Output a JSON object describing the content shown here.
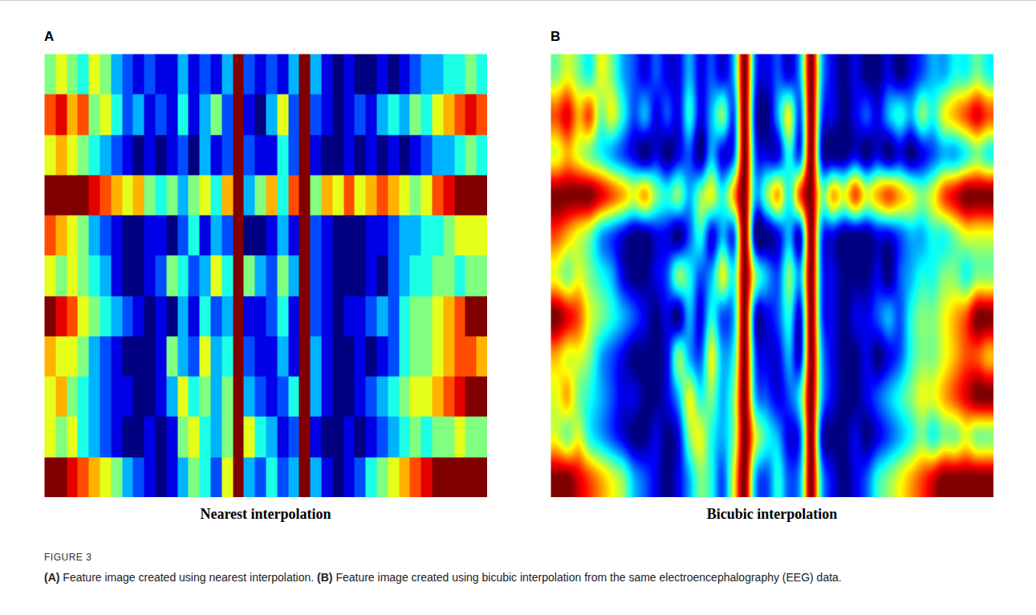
{
  "chart_data": [
    {
      "type": "heatmap",
      "panel": "A",
      "title": "Nearest interpolation",
      "tick_labels": false,
      "zlim": [
        0,
        1
      ],
      "cells": [
        [
          0.5,
          0.6,
          0.5,
          0.4,
          0.6,
          0.5,
          0.3,
          0.2,
          0.1,
          0.2,
          0.1,
          0.1,
          0.3,
          0.1,
          0.2,
          0.1,
          0.3,
          1.0,
          0.2,
          0.1,
          0.2,
          0.1,
          0.3,
          1.0,
          0.3,
          0.1,
          0.0,
          0.1,
          0.0,
          0.0,
          0.1,
          0.0,
          0.1,
          0.2,
          0.3,
          0.3,
          0.4,
          0.4,
          0.5,
          0.4
        ],
        [
          0.8,
          0.9,
          0.7,
          0.8,
          0.5,
          0.6,
          0.4,
          0.2,
          0.3,
          0.1,
          0.2,
          0.1,
          0.4,
          0.1,
          0.3,
          0.5,
          0.2,
          1.0,
          0.1,
          0.0,
          0.3,
          0.6,
          0.2,
          1.0,
          0.2,
          0.1,
          0.0,
          0.1,
          0.2,
          0.1,
          0.3,
          0.4,
          0.3,
          0.5,
          0.4,
          0.6,
          0.7,
          0.8,
          0.9,
          0.8
        ],
        [
          0.6,
          0.7,
          0.6,
          0.5,
          0.4,
          0.3,
          0.2,
          0.1,
          0.0,
          0.1,
          0.0,
          0.1,
          0.2,
          0.0,
          0.3,
          0.1,
          0.2,
          1.0,
          0.2,
          0.1,
          0.1,
          0.4,
          0.2,
          1.0,
          0.1,
          0.0,
          0.0,
          0.1,
          0.0,
          0.1,
          0.0,
          0.1,
          0.0,
          0.1,
          0.2,
          0.3,
          0.3,
          0.4,
          0.5,
          0.4
        ],
        [
          1.0,
          1.0,
          1.0,
          1.0,
          0.9,
          0.8,
          0.7,
          0.6,
          0.7,
          0.5,
          0.4,
          0.5,
          0.3,
          0.5,
          0.6,
          0.4,
          0.7,
          1.0,
          0.3,
          0.5,
          0.7,
          0.4,
          0.8,
          1.0,
          0.5,
          0.7,
          0.6,
          0.8,
          0.6,
          0.7,
          0.8,
          0.7,
          0.6,
          0.5,
          0.6,
          0.8,
          0.9,
          1.0,
          1.0,
          1.0
        ],
        [
          0.8,
          0.7,
          0.6,
          0.5,
          0.3,
          0.2,
          0.1,
          0.0,
          0.0,
          0.1,
          0.1,
          0.0,
          0.2,
          0.4,
          0.1,
          0.3,
          0.2,
          1.0,
          0.0,
          0.0,
          0.1,
          0.3,
          0.1,
          1.0,
          0.2,
          0.1,
          0.0,
          0.0,
          0.0,
          0.1,
          0.1,
          0.2,
          0.3,
          0.3,
          0.4,
          0.4,
          0.5,
          0.6,
          0.6,
          0.6
        ],
        [
          0.6,
          0.5,
          0.6,
          0.5,
          0.4,
          0.3,
          0.1,
          0.0,
          0.0,
          0.1,
          0.2,
          0.5,
          0.4,
          0.2,
          0.3,
          0.6,
          0.4,
          1.0,
          0.5,
          0.3,
          0.2,
          0.5,
          0.3,
          1.0,
          0.2,
          0.1,
          0.0,
          0.0,
          0.0,
          0.1,
          0.0,
          0.2,
          0.3,
          0.4,
          0.4,
          0.5,
          0.5,
          0.4,
          0.5,
          0.5
        ],
        [
          1.0,
          0.9,
          0.8,
          0.6,
          0.5,
          0.4,
          0.3,
          0.2,
          0.1,
          0.0,
          0.1,
          0.0,
          0.3,
          0.1,
          0.4,
          0.2,
          0.3,
          1.0,
          0.1,
          0.1,
          0.2,
          0.4,
          0.1,
          1.0,
          0.2,
          0.1,
          0.0,
          0.1,
          0.1,
          0.2,
          0.3,
          0.2,
          0.4,
          0.5,
          0.5,
          0.6,
          0.7,
          0.8,
          1.0,
          1.0
        ],
        [
          0.7,
          0.6,
          0.6,
          0.5,
          0.3,
          0.2,
          0.1,
          0.0,
          0.0,
          0.0,
          0.1,
          0.5,
          0.3,
          0.2,
          0.6,
          0.3,
          0.4,
          1.0,
          0.2,
          0.1,
          0.1,
          0.3,
          0.1,
          1.0,
          0.3,
          0.1,
          0.0,
          0.0,
          0.1,
          0.0,
          0.1,
          0.2,
          0.4,
          0.5,
          0.5,
          0.6,
          0.7,
          0.8,
          0.8,
          0.7
        ],
        [
          0.6,
          0.7,
          0.5,
          0.4,
          0.3,
          0.2,
          0.1,
          0.1,
          0.0,
          0.0,
          0.1,
          0.3,
          0.6,
          0.4,
          0.5,
          0.3,
          0.5,
          1.0,
          0.3,
          0.2,
          0.1,
          0.2,
          0.4,
          1.0,
          0.3,
          0.1,
          0.0,
          0.0,
          0.1,
          0.2,
          0.3,
          0.4,
          0.5,
          0.6,
          0.6,
          0.7,
          0.8,
          0.9,
          1.0,
          1.0
        ],
        [
          0.6,
          0.5,
          0.6,
          0.4,
          0.3,
          0.2,
          0.1,
          0.0,
          0.0,
          0.1,
          0.0,
          0.1,
          0.5,
          0.6,
          0.4,
          0.3,
          0.5,
          1.0,
          0.6,
          0.4,
          0.3,
          0.1,
          0.2,
          1.0,
          0.1,
          0.0,
          0.0,
          0.1,
          0.0,
          0.1,
          0.2,
          0.3,
          0.4,
          0.5,
          0.4,
          0.5,
          0.5,
          0.6,
          0.5,
          0.5
        ],
        [
          1.0,
          1.0,
          0.9,
          0.8,
          0.7,
          0.6,
          0.5,
          0.3,
          0.2,
          0.1,
          0.0,
          0.1,
          0.3,
          0.5,
          0.4,
          0.2,
          0.6,
          1.0,
          0.3,
          0.2,
          0.4,
          0.2,
          0.3,
          1.0,
          0.3,
          0.1,
          0.0,
          0.1,
          0.2,
          0.4,
          0.5,
          0.6,
          0.7,
          0.8,
          0.9,
          1.0,
          1.0,
          1.0,
          1.0,
          1.0
        ]
      ]
    },
    {
      "type": "heatmap",
      "panel": "B",
      "title": "Bicubic interpolation",
      "tick_labels": false,
      "zlim": [
        0,
        1
      ],
      "cells": [
        [
          0.5,
          0.6,
          0.5,
          0.4,
          0.6,
          0.5,
          0.3,
          0.2,
          0.1,
          0.2,
          0.1,
          0.1,
          0.3,
          0.1,
          0.2,
          0.1,
          0.3,
          1.0,
          0.2,
          0.1,
          0.2,
          0.1,
          0.3,
          1.0,
          0.3,
          0.1,
          0.0,
          0.1,
          0.0,
          0.0,
          0.1,
          0.0,
          0.1,
          0.2,
          0.3,
          0.3,
          0.4,
          0.4,
          0.5,
          0.4
        ],
        [
          0.8,
          0.9,
          0.7,
          0.8,
          0.5,
          0.6,
          0.4,
          0.2,
          0.3,
          0.1,
          0.2,
          0.1,
          0.4,
          0.1,
          0.3,
          0.5,
          0.2,
          1.0,
          0.1,
          0.0,
          0.3,
          0.6,
          0.2,
          1.0,
          0.2,
          0.1,
          0.0,
          0.1,
          0.2,
          0.1,
          0.3,
          0.4,
          0.3,
          0.5,
          0.4,
          0.6,
          0.7,
          0.8,
          0.9,
          0.8
        ],
        [
          0.6,
          0.7,
          0.6,
          0.5,
          0.4,
          0.3,
          0.2,
          0.1,
          0.0,
          0.1,
          0.0,
          0.1,
          0.2,
          0.0,
          0.3,
          0.1,
          0.2,
          1.0,
          0.2,
          0.1,
          0.1,
          0.4,
          0.2,
          1.0,
          0.1,
          0.0,
          0.0,
          0.1,
          0.0,
          0.1,
          0.0,
          0.1,
          0.0,
          0.1,
          0.2,
          0.3,
          0.3,
          0.4,
          0.5,
          0.4
        ],
        [
          1.0,
          1.0,
          1.0,
          1.0,
          0.9,
          0.8,
          0.7,
          0.6,
          0.7,
          0.5,
          0.4,
          0.5,
          0.3,
          0.5,
          0.6,
          0.4,
          0.7,
          1.0,
          0.3,
          0.5,
          0.7,
          0.4,
          0.8,
          1.0,
          0.5,
          0.7,
          0.6,
          0.8,
          0.6,
          0.7,
          0.8,
          0.7,
          0.6,
          0.5,
          0.6,
          0.8,
          0.9,
          1.0,
          1.0,
          1.0
        ],
        [
          0.8,
          0.7,
          0.6,
          0.5,
          0.3,
          0.2,
          0.1,
          0.0,
          0.0,
          0.1,
          0.1,
          0.0,
          0.2,
          0.4,
          0.1,
          0.3,
          0.2,
          1.0,
          0.0,
          0.0,
          0.1,
          0.3,
          0.1,
          1.0,
          0.2,
          0.1,
          0.0,
          0.0,
          0.0,
          0.1,
          0.1,
          0.2,
          0.3,
          0.3,
          0.4,
          0.4,
          0.5,
          0.6,
          0.6,
          0.6
        ],
        [
          0.6,
          0.5,
          0.6,
          0.5,
          0.4,
          0.3,
          0.1,
          0.0,
          0.0,
          0.1,
          0.2,
          0.5,
          0.4,
          0.2,
          0.3,
          0.6,
          0.4,
          1.0,
          0.5,
          0.3,
          0.2,
          0.5,
          0.3,
          1.0,
          0.2,
          0.1,
          0.0,
          0.0,
          0.0,
          0.1,
          0.0,
          0.2,
          0.3,
          0.4,
          0.4,
          0.5,
          0.5,
          0.4,
          0.5,
          0.5
        ],
        [
          1.0,
          0.9,
          0.8,
          0.6,
          0.5,
          0.4,
          0.3,
          0.2,
          0.1,
          0.0,
          0.1,
          0.0,
          0.3,
          0.1,
          0.4,
          0.2,
          0.3,
          1.0,
          0.1,
          0.1,
          0.2,
          0.4,
          0.1,
          1.0,
          0.2,
          0.1,
          0.0,
          0.1,
          0.1,
          0.2,
          0.3,
          0.2,
          0.4,
          0.5,
          0.5,
          0.6,
          0.7,
          0.8,
          1.0,
          1.0
        ],
        [
          0.7,
          0.6,
          0.6,
          0.5,
          0.3,
          0.2,
          0.1,
          0.0,
          0.0,
          0.0,
          0.1,
          0.5,
          0.3,
          0.2,
          0.6,
          0.3,
          0.4,
          1.0,
          0.2,
          0.1,
          0.1,
          0.3,
          0.1,
          1.0,
          0.3,
          0.1,
          0.0,
          0.0,
          0.1,
          0.0,
          0.1,
          0.2,
          0.4,
          0.5,
          0.5,
          0.6,
          0.7,
          0.8,
          0.8,
          0.7
        ],
        [
          0.6,
          0.7,
          0.5,
          0.4,
          0.3,
          0.2,
          0.1,
          0.1,
          0.0,
          0.0,
          0.1,
          0.3,
          0.6,
          0.4,
          0.5,
          0.3,
          0.5,
          1.0,
          0.3,
          0.2,
          0.1,
          0.2,
          0.4,
          1.0,
          0.3,
          0.1,
          0.0,
          0.0,
          0.1,
          0.2,
          0.3,
          0.4,
          0.5,
          0.6,
          0.6,
          0.7,
          0.8,
          0.9,
          1.0,
          1.0
        ],
        [
          0.6,
          0.5,
          0.6,
          0.4,
          0.3,
          0.2,
          0.1,
          0.0,
          0.0,
          0.1,
          0.0,
          0.1,
          0.5,
          0.6,
          0.4,
          0.3,
          0.5,
          1.0,
          0.6,
          0.4,
          0.3,
          0.1,
          0.2,
          1.0,
          0.1,
          0.0,
          0.0,
          0.1,
          0.0,
          0.1,
          0.2,
          0.3,
          0.4,
          0.5,
          0.4,
          0.5,
          0.5,
          0.6,
          0.5,
          0.5
        ],
        [
          1.0,
          1.0,
          0.9,
          0.8,
          0.7,
          0.6,
          0.5,
          0.3,
          0.2,
          0.1,
          0.0,
          0.1,
          0.3,
          0.5,
          0.4,
          0.2,
          0.6,
          1.0,
          0.3,
          0.2,
          0.4,
          0.2,
          0.3,
          1.0,
          0.3,
          0.1,
          0.0,
          0.1,
          0.2,
          0.4,
          0.5,
          0.6,
          0.7,
          0.8,
          0.9,
          1.0,
          1.0,
          1.0,
          1.0,
          1.0
        ]
      ]
    }
  ],
  "caption": {
    "label": "FIGURE 3",
    "items": [
      {
        "label": "(A)",
        "text": "Feature image created using nearest interpolation."
      },
      {
        "label": "(B)",
        "text": "Feature image created using bicubic interpolation from the same electroencephalography (EEG) data."
      }
    ]
  }
}
